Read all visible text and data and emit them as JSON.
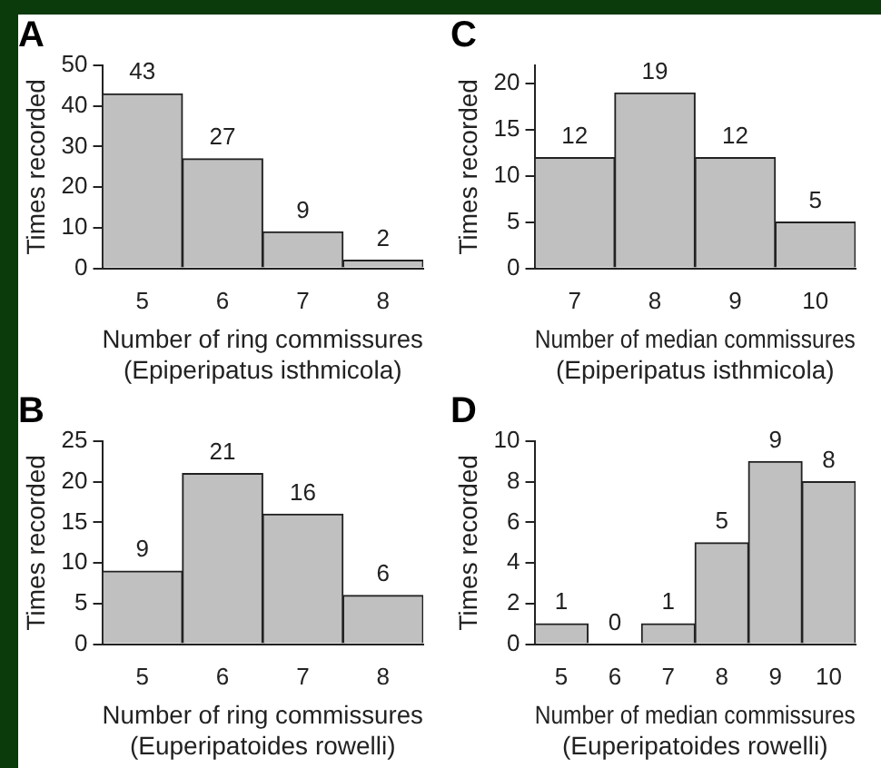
{
  "chart_data": [
    {
      "type": "bar",
      "title": "A",
      "ylabel": "Times recorded",
      "xlabel": "Number of ring commissures\n(Epiperipatus isthmicola)",
      "categories": [
        "5",
        "6",
        "7",
        "8"
      ],
      "values": [
        43,
        27,
        9,
        2
      ],
      "color": "#c0c0c0",
      "ylim": [
        0,
        50
      ],
      "yticks": [
        0,
        10,
        20,
        30,
        40,
        50
      ],
      "data_labels": true
    },
    {
      "type": "bar",
      "title": "C",
      "ylabel": "Times recorded",
      "xlabel": "Number of median commissures\n(Epiperipatus isthmicola)",
      "categories": [
        "7",
        "8",
        "9",
        "10"
      ],
      "values": [
        12,
        19,
        12,
        5
      ],
      "color": "#c0c0c0",
      "ylim": [
        0,
        22
      ],
      "yticks": [
        0,
        5,
        10,
        15,
        20
      ],
      "data_labels": true
    },
    {
      "type": "bar",
      "title": "B",
      "ylabel": "Times recorded",
      "xlabel": "Number of ring commissures\n(Euperipatoides rowelli)",
      "categories": [
        "5",
        "6",
        "7",
        "8"
      ],
      "values": [
        9,
        21,
        16,
        6
      ],
      "color": "#c0c0c0",
      "ylim": [
        0,
        25
      ],
      "yticks": [
        0,
        5,
        10,
        15,
        20,
        25
      ],
      "data_labels": true
    },
    {
      "type": "bar",
      "title": "D",
      "ylabel": "Times recorded",
      "xlabel": "Number of median commissures\n(Euperipatoides rowelli)",
      "categories": [
        "5",
        "6",
        "7",
        "8",
        "9",
        "10"
      ],
      "values": [
        1,
        0,
        1,
        5,
        9,
        8
      ],
      "color": "#c0c0c0",
      "ylim": [
        0,
        10
      ],
      "yticks": [
        0,
        2,
        4,
        6,
        8,
        10
      ],
      "data_labels": true
    }
  ]
}
